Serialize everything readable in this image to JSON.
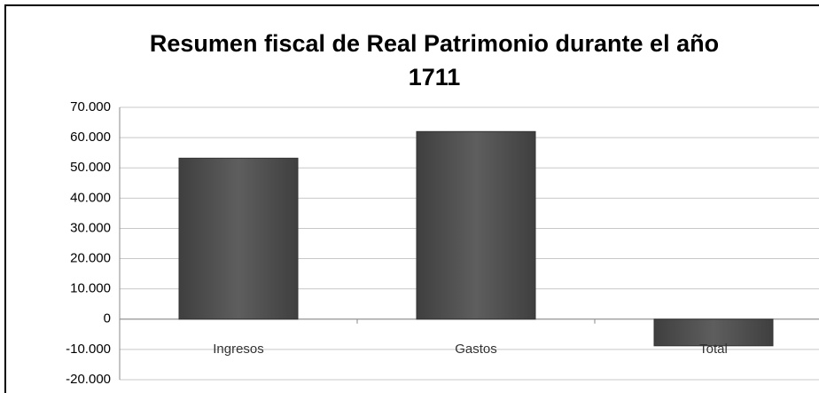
{
  "chart_data": {
    "type": "bar",
    "title": "Resumen fiscal de Real Patrimonio durante el año 1711",
    "categories": [
      "Ingresos",
      "Gastos",
      "Total"
    ],
    "values": [
      53200,
      62000,
      -8800
    ],
    "color": "#555555",
    "ylim": [
      -20000,
      70000
    ],
    "yticks": [
      {
        "value": -20000,
        "label": "-20.000"
      },
      {
        "value": -10000,
        "label": "-10.000"
      },
      0,
      {
        "value": 10000,
        "label": "10.000"
      },
      {
        "value": 20000,
        "label": "20.000"
      },
      {
        "value": 30000,
        "label": "30.000"
      },
      {
        "value": 40000,
        "label": "40.000"
      },
      {
        "value": 50000,
        "label": "50.000"
      },
      {
        "value": 60000,
        "label": "60.000"
      },
      {
        "value": 70000,
        "label": "70.000"
      }
    ],
    "grid": true
  }
}
